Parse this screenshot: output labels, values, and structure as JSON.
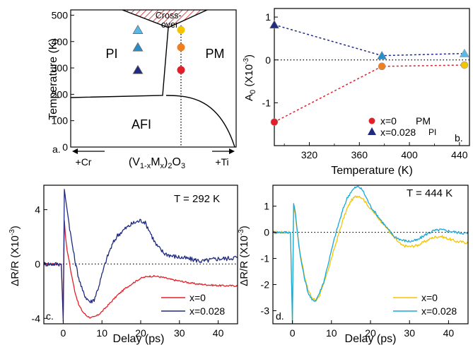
{
  "colors": {
    "red": "#e2202a",
    "navy": "#1f2a80",
    "yellow": "#f5c400",
    "cyan": "#18a8d8",
    "orange": "#f0801e",
    "pi_light": "#5ab8e6",
    "pi_mid": "#2b8cc8",
    "pi_dark": "#1f2a80",
    "hatch": "#c8282c"
  },
  "chart_data": [
    {
      "id": "a",
      "type": "phase-diagram",
      "panel_label": "a.",
      "ylabel": "Temperature (K)",
      "xlabel": "(V1-xMx)2O3",
      "x_left_label": "+Cr",
      "x_right_label": "+Ti",
      "ylim": [
        0,
        520
      ],
      "yticks": [
        0,
        100,
        200,
        300,
        400,
        500
      ],
      "regions": {
        "pi": "PI",
        "pm": "PM",
        "afi": "AFI",
        "crossover": "Cross-\nover"
      },
      "markers": [
        {
          "series": "PI",
          "shape": "triangle",
          "y": 444,
          "color": "#5ab8e6"
        },
        {
          "series": "PI",
          "shape": "triangle",
          "y": 378,
          "color": "#2b8cc8"
        },
        {
          "series": "PI",
          "shape": "triangle",
          "y": 292,
          "color": "#1f2a80"
        },
        {
          "series": "PM",
          "shape": "circle",
          "y": 444,
          "color": "#f5c400"
        },
        {
          "series": "PM",
          "shape": "circle",
          "y": 378,
          "color": "#f0801e"
        },
        {
          "series": "PM",
          "shape": "circle",
          "y": 292,
          "color": "#e2202a"
        }
      ]
    },
    {
      "id": "b",
      "type": "scatter",
      "panel_label": "b.",
      "xlabel": "Temperature (K)",
      "ylabel": "A0 (X10-3)",
      "xlim": [
        292,
        448
      ],
      "ylim": [
        -2.0,
        1.2
      ],
      "xticks": [
        320,
        360,
        400,
        440
      ],
      "yticks": [
        -1,
        0,
        1
      ],
      "series": [
        {
          "name": "x=0",
          "label_suffix": "PM",
          "marker": "circle",
          "color": "#e2202a",
          "x": [
            292,
            378,
            444
          ],
          "y": [
            -1.45,
            -0.15,
            -0.12
          ],
          "point_colors": [
            "#e2202a",
            "#f0801e",
            "#f5c400"
          ]
        },
        {
          "name": "x=0.028",
          "label_suffix": "PI",
          "marker": "triangle",
          "color": "#1f2a80",
          "x": [
            292,
            378,
            444
          ],
          "y": [
            0.82,
            0.1,
            0.15
          ],
          "point_colors": [
            "#1f2a80",
            "#2b8cc8",
            "#5ab8e6"
          ]
        }
      ],
      "legend": "bottom-right"
    },
    {
      "id": "c",
      "type": "line",
      "panel_label": "c.",
      "annotation": "T = 292 K",
      "xlabel": "Delay (ps)",
      "ylabel": "ΔR/R (X10-3)",
      "xlim": [
        -5,
        45
      ],
      "ylim": [
        -4.4,
        5.8
      ],
      "xticks": [
        0,
        10,
        20,
        30,
        40
      ],
      "yticks": [
        -4,
        0,
        4
      ],
      "series": [
        {
          "name": "x=0",
          "color": "#e2202a",
          "x": [
            -5,
            -0.5,
            0,
            0.3,
            0.6,
            1,
            1.5,
            2,
            3,
            4,
            5,
            6,
            7,
            8,
            9,
            10,
            12,
            14,
            16,
            18,
            20,
            22,
            24,
            26,
            28,
            30,
            32,
            34,
            36,
            38,
            40,
            42,
            45
          ],
          "y": [
            0,
            0,
            -3.8,
            3.2,
            2.0,
            1.0,
            0.3,
            -0.6,
            -2.0,
            -3.0,
            -3.5,
            -3.8,
            -3.95,
            -3.9,
            -3.75,
            -3.5,
            -2.9,
            -2.3,
            -1.8,
            -1.4,
            -1.05,
            -0.9,
            -0.9,
            -1.0,
            -1.15,
            -1.25,
            -1.35,
            -1.45,
            -1.5,
            -1.55,
            -1.58,
            -1.6,
            -1.6
          ]
        },
        {
          "name": "x=0.028",
          "color": "#1f2a80",
          "x": [
            -5,
            -0.5,
            0,
            0.3,
            0.6,
            1,
            1.5,
            2,
            3,
            4,
            5,
            6,
            7,
            8,
            9,
            10,
            11,
            12,
            13,
            14,
            16,
            18,
            20,
            21,
            22,
            23,
            24,
            26,
            28,
            30,
            32,
            34,
            36,
            38,
            40,
            42,
            45
          ],
          "y": [
            0,
            0,
            -4.2,
            5.5,
            4.8,
            4.0,
            3.0,
            2.0,
            0.3,
            -1.0,
            -2.0,
            -2.5,
            -2.8,
            -2.6,
            -1.8,
            -0.8,
            0.2,
            1.0,
            1.6,
            2.1,
            2.6,
            3.0,
            3.2,
            3.1,
            2.6,
            2.0,
            1.4,
            0.8,
            0.6,
            0.5,
            0.4,
            0.3,
            0.2,
            0.3,
            0.4,
            0.4,
            0.5
          ]
        }
      ],
      "legend": "bottom-right"
    },
    {
      "id": "d",
      "type": "line",
      "panel_label": "d.",
      "annotation": "T = 444 K",
      "xlabel": "Delay (ps)",
      "ylabel": "ΔR/R (X10-3)",
      "xlim": [
        -5,
        45
      ],
      "ylim": [
        -3.5,
        1.8
      ],
      "xticks": [
        0,
        10,
        20,
        30,
        40
      ],
      "yticks": [
        -3,
        -2,
        -1,
        0,
        1
      ],
      "series": [
        {
          "name": "x=0",
          "color": "#f5c400",
          "x": [
            -5,
            -0.5,
            0,
            0.3,
            0.7,
            1,
            1.5,
            2,
            3,
            4,
            5,
            6,
            7,
            8,
            9,
            10,
            11,
            12,
            13,
            14,
            15,
            16,
            17,
            18,
            19,
            20,
            22,
            24,
            26,
            28,
            30,
            32,
            34,
            36,
            38,
            40,
            42,
            45
          ],
          "y": [
            0,
            0,
            -3.4,
            1.0,
            0.7,
            0.3,
            -0.3,
            -0.8,
            -1.6,
            -2.2,
            -2.5,
            -2.6,
            -2.4,
            -2.0,
            -1.5,
            -1.0,
            -0.5,
            0.0,
            0.5,
            0.9,
            1.2,
            1.35,
            1.4,
            1.3,
            1.1,
            0.9,
            0.55,
            0.2,
            -0.2,
            -0.5,
            -0.55,
            -0.5,
            -0.35,
            -0.2,
            -0.15,
            -0.25,
            -0.35,
            -0.4
          ]
        },
        {
          "name": "x=0.028",
          "color": "#18a8d8",
          "x": [
            -5,
            -0.5,
            0,
            0.3,
            0.7,
            1,
            1.5,
            2,
            3,
            4,
            5,
            6,
            7,
            8,
            9,
            10,
            11,
            12,
            13,
            14,
            15,
            16,
            17,
            18,
            19,
            20,
            22,
            24,
            26,
            28,
            30,
            32,
            34,
            36,
            38,
            40,
            42,
            45
          ],
          "y": [
            0,
            0,
            -3.5,
            1.1,
            0.8,
            0.4,
            -0.3,
            -0.9,
            -1.7,
            -2.3,
            -2.6,
            -2.6,
            -2.3,
            -1.9,
            -1.3,
            -0.7,
            -0.1,
            0.4,
            0.9,
            1.3,
            1.55,
            1.7,
            1.75,
            1.6,
            1.3,
            1.0,
            0.6,
            0.2,
            -0.15,
            -0.3,
            -0.35,
            -0.3,
            -0.1,
            0.05,
            0.1,
            0.05,
            0.0,
            -0.05
          ]
        }
      ],
      "legend": "bottom-right"
    }
  ]
}
